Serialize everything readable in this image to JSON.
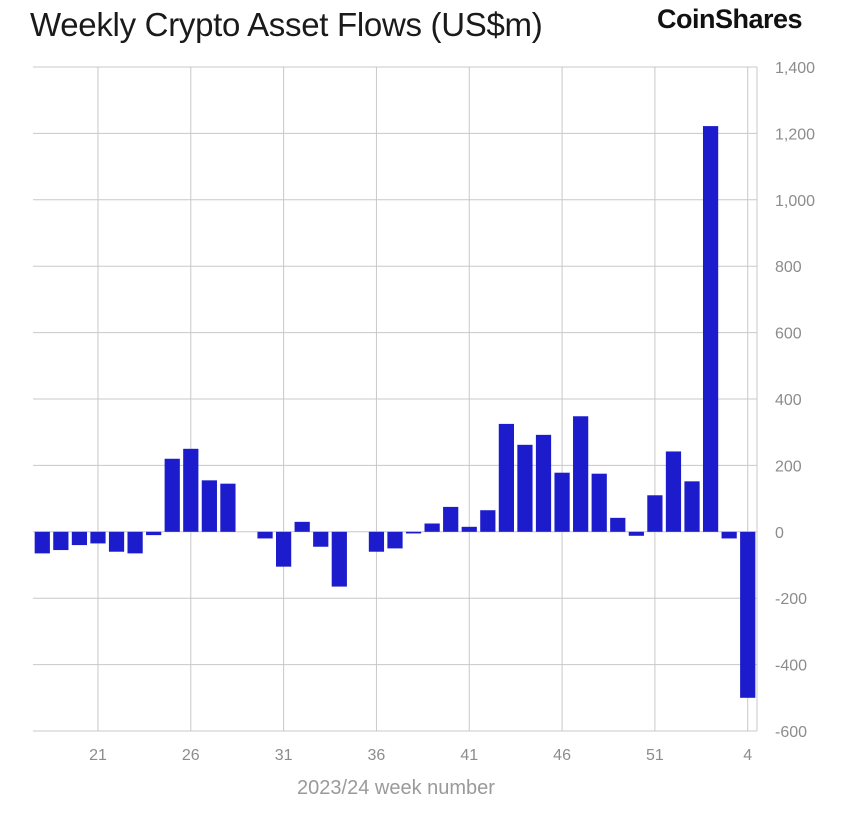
{
  "header": {
    "title": "Weekly Crypto Asset Flows (US$m)",
    "brand": "CoinShares"
  },
  "colors": {
    "bar": "#1c1ccc",
    "grid": "#c8c8c8",
    "tick": "#8c8c8c"
  },
  "chart_data": {
    "type": "bar",
    "title": "Weekly Crypto Asset Flows (US$m)",
    "xlabel": "2023/24 week number",
    "ylabel": "",
    "ylim": [
      -600,
      1400
    ],
    "yticks": [
      1400,
      1200,
      1000,
      800,
      600,
      400,
      200,
      0,
      -200,
      -400,
      -600
    ],
    "ytick_labels": [
      "1,400",
      "1,200",
      "1,000",
      "800",
      "600",
      "400",
      "200",
      "0",
      "-200",
      "-400",
      "-600"
    ],
    "xtick_labels": [
      "21",
      "26",
      "31",
      "36",
      "41",
      "46",
      "51",
      "4"
    ],
    "categories": [
      "18",
      "19",
      "20",
      "21",
      "22",
      "23",
      "24",
      "25",
      "26",
      "27",
      "28",
      "29",
      "30",
      "31",
      "32",
      "33",
      "34",
      "35",
      "36",
      "37",
      "38",
      "39",
      "40",
      "41",
      "42",
      "43",
      "44",
      "45",
      "46",
      "47",
      "48",
      "49",
      "50",
      "51",
      "52",
      "1",
      "2",
      "3",
      "4"
    ],
    "values": [
      -65,
      -55,
      -40,
      -35,
      -60,
      -65,
      -10,
      220,
      250,
      155,
      145,
      0,
      -20,
      -105,
      30,
      -45,
      -165,
      0,
      -60,
      -50,
      -5,
      25,
      75,
      15,
      65,
      325,
      262,
      292,
      178,
      348,
      175,
      42,
      -12,
      110,
      242,
      152,
      1222,
      -20,
      -500
    ],
    "grid": true,
    "y_axis_position": "right"
  }
}
